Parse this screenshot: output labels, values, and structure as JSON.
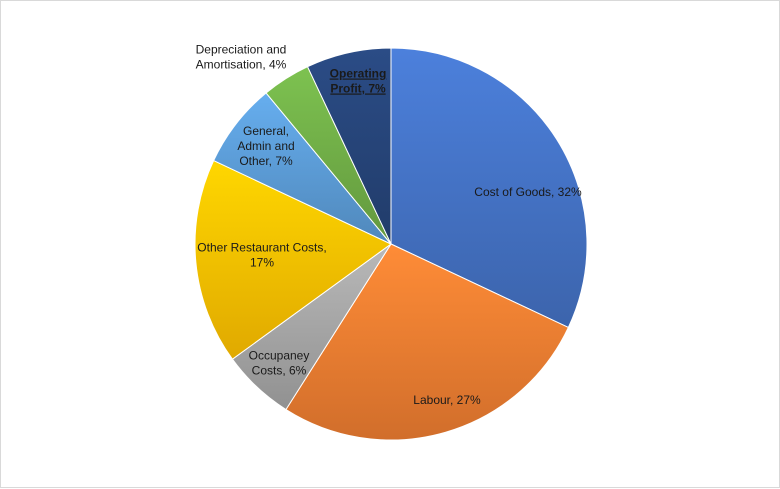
{
  "chart_data": {
    "type": "pie",
    "title": "",
    "start_angle_deg": 0,
    "direction": "clockwise",
    "slices": [
      {
        "label": "Cost of Goods",
        "value": 32,
        "display": "Cost of Goods, 32%",
        "color": "#4472C4"
      },
      {
        "label": "Labour",
        "value": 27,
        "display": "Labour, 27%",
        "color": "#ED7D31"
      },
      {
        "label": "Occupaney Costs",
        "value": 6,
        "display": "Occupaney Costs, 6%",
        "color": "#A5A5A5"
      },
      {
        "label": "Other Restaurant Costs",
        "value": 17,
        "display": "Other Restaurant Costs, 17%",
        "color": "#FFC000"
      },
      {
        "label": "General, Admin and Other",
        "value": 7,
        "display": "General, Admin and Other, 7%",
        "color": "#5B9BD5"
      },
      {
        "label": "Depreciation and Amortisation",
        "value": 4,
        "display": "Depreciation and Amortisation, 4%",
        "color": "#70AD47"
      },
      {
        "label": "Operating Profit",
        "value": 7,
        "display": "Operating Profit, 7%",
        "color": "#264478"
      }
    ]
  }
}
